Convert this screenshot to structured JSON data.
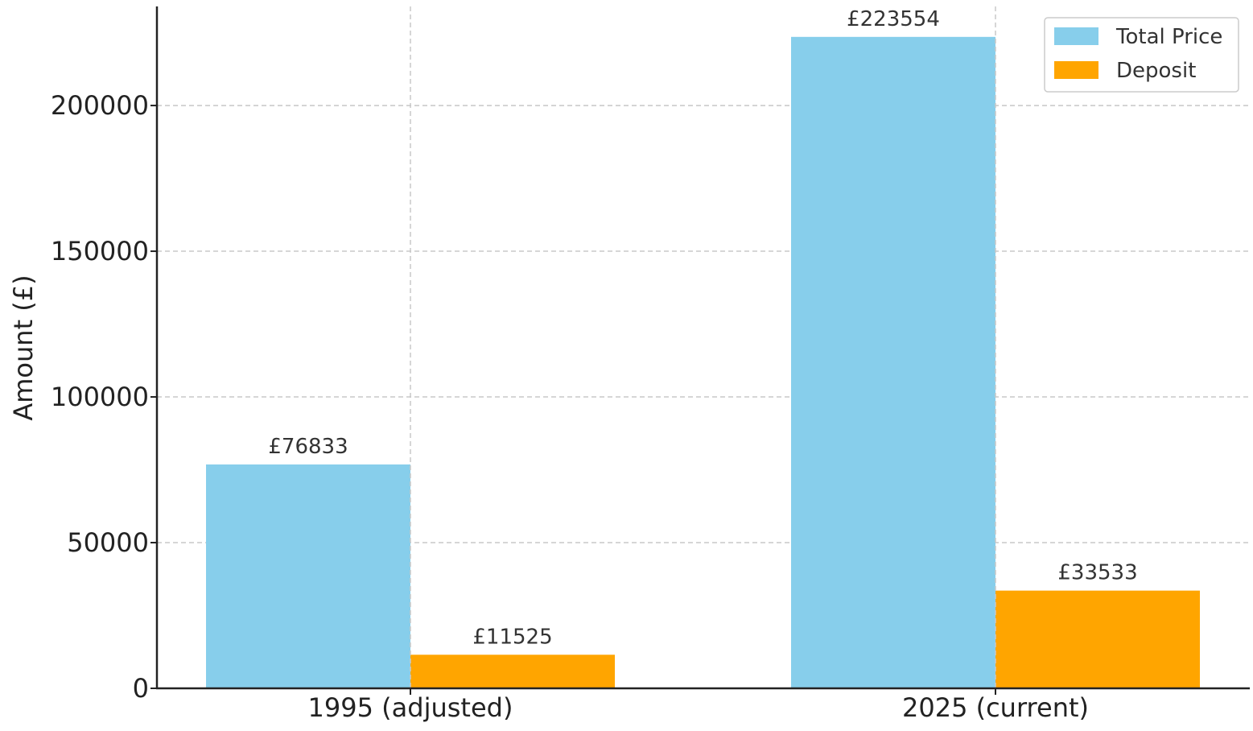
{
  "chart_data": {
    "type": "bar",
    "categories": [
      "1995 (adjusted)",
      "2025 (current)"
    ],
    "series": [
      {
        "name": "Total Price",
        "values": [
          76833,
          223554
        ],
        "color": "#87CEEB",
        "value_labels": [
          "£76833",
          "£223554"
        ]
      },
      {
        "name": "Deposit",
        "values": [
          11525,
          33533
        ],
        "color": "#FFA500",
        "value_labels": [
          "£11525",
          "£33533"
        ]
      }
    ],
    "ylabel": "Amount (£)",
    "xlabel": "",
    "title": "",
    "ylim": [
      0,
      234000
    ],
    "yticks": [
      0,
      50000,
      100000,
      150000,
      200000
    ],
    "ytick_labels": [
      "0",
      "50000",
      "100000",
      "150000",
      "200000"
    ],
    "grid": true,
    "legend": "top-right"
  }
}
